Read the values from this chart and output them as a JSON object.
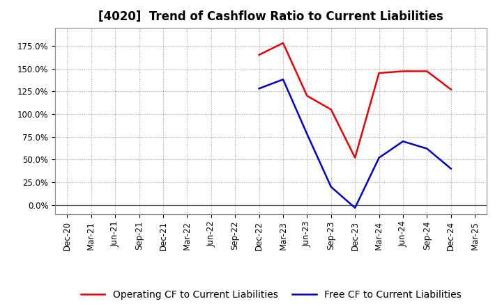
{
  "title": "[4020]  Trend of Cashflow Ratio to Current Liabilities",
  "x_labels": [
    "Dec-20",
    "Mar-21",
    "Jun-21",
    "Sep-21",
    "Dec-21",
    "Mar-22",
    "Jun-22",
    "Sep-22",
    "Dec-22",
    "Mar-23",
    "Jun-23",
    "Sep-23",
    "Dec-23",
    "Mar-24",
    "Jun-24",
    "Sep-24",
    "Dec-24",
    "Mar-25"
  ],
  "operating_cf": {
    "x_indices": [
      8,
      9,
      10,
      11,
      12,
      13,
      14,
      15,
      16
    ],
    "values": [
      165.0,
      178.0,
      120.0,
      105.0,
      52.0,
      145.0,
      147.0,
      147.0,
      127.0
    ],
    "color": "#ee0000",
    "label": "Operating CF to Current Liabilities",
    "linewidth": 1.8
  },
  "free_cf": {
    "x_indices": [
      8,
      9,
      10,
      11,
      12,
      13,
      14,
      15,
      16
    ],
    "values": [
      128.0,
      138.0,
      78.0,
      20.0,
      -3.0,
      52.0,
      70.0,
      62.0,
      40.0
    ],
    "color": "#0000cc",
    "label": "Free CF to Current Liabilities",
    "linewidth": 1.8
  },
  "ylim": [
    -10,
    195
  ],
  "yticks": [
    0,
    25,
    50,
    75,
    100,
    125,
    150,
    175
  ],
  "ytick_labels": [
    "0.0%",
    "25.0%",
    "50.0%",
    "75.0%",
    "100.0%",
    "125.0%",
    "150.0%",
    "175.0%"
  ],
  "background_color": "#ffffff",
  "plot_bg_color": "#ffffff",
  "grid_color": "#999999",
  "title_fontsize": 12,
  "legend_fontsize": 10,
  "tick_fontsize": 8.5
}
